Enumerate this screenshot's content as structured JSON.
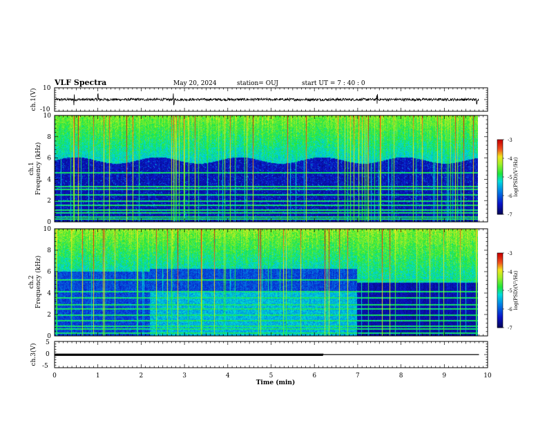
{
  "header": {
    "title": "VLF Spectra",
    "date": "May 20, 2024",
    "station": "station= OUJ",
    "start": "start UT = 7 : 40 : 0"
  },
  "chart_data": [
    {
      "type": "line",
      "panel": "ch.1 waveform",
      "ylabel": "ch.1(V)",
      "ylim": [
        -10,
        10
      ],
      "yticks": [
        "10",
        "-10"
      ],
      "xlim": [
        0,
        10
      ],
      "series": [
        {
          "values": []
        }
      ],
      "spikes_min": [
        0.45,
        1.0,
        2.75,
        7.45,
        9.75
      ]
    },
    {
      "type": "heatmap",
      "panel": "ch.1 spectrogram",
      "ylabel": [
        "ch.1",
        "Frequency (kHz)"
      ],
      "ylim": [
        0,
        10
      ],
      "yticks": [
        "0",
        "2",
        "4",
        "6",
        "8",
        "10"
      ],
      "xlim": [
        0,
        10
      ],
      "colorbar": {
        "label": "log(PSD)(V²/Hz)",
        "range": [
          -7,
          -3
        ],
        "ticks": [
          "-3",
          "-4",
          "-5",
          "-6",
          "-7"
        ]
      },
      "noise_floor_khz": 5.8,
      "hiss_khz": [
        6.5,
        10
      ],
      "ground_lines_khz": [
        0.3,
        0.5,
        0.9,
        1.2,
        1.6,
        2.0,
        2.6,
        3.1,
        3.4,
        4.7
      ]
    },
    {
      "type": "heatmap",
      "panel": "ch.2 spectrogram",
      "ylabel": [
        "ch.2",
        "Frequency (kHz)"
      ],
      "ylim": [
        0,
        10
      ],
      "yticks": [
        "0",
        "2",
        "4",
        "6",
        "8",
        "10"
      ],
      "xlim": [
        0,
        10
      ],
      "colorbar": {
        "label": "log(PSD)(V²/Hz)",
        "range": [
          -7,
          -3
        ],
        "ticks": [
          "-3",
          "-4",
          "-5",
          "-6",
          "-7"
        ]
      },
      "noise_change_min": [
        2.2,
        7.0
      ],
      "noise_level_khz": [
        6.0,
        6.3,
        5.0
      ],
      "ground_lines_khz": [
        0.3,
        0.7,
        1.0,
        1.5,
        2.0,
        2.6,
        3.0,
        3.6,
        4.2,
        5.3
      ]
    },
    {
      "type": "line",
      "panel": "ch.3 waveform",
      "ylabel": "ch.3(V)",
      "xlabel": "Time (min)",
      "ylim": [
        -5,
        5
      ],
      "yticks": [
        "5",
        "0",
        "-5"
      ],
      "xlim": [
        0,
        10
      ],
      "xticks": [
        "0",
        "1",
        "2",
        "3",
        "4",
        "5",
        "6",
        "7",
        "8",
        "9",
        "10"
      ],
      "series": [
        {
          "x": [
            0,
            6.2,
            6.2,
            9.8
          ],
          "y": [
            0.2,
            0.2,
            0.0,
            0.0
          ]
        }
      ]
    }
  ]
}
